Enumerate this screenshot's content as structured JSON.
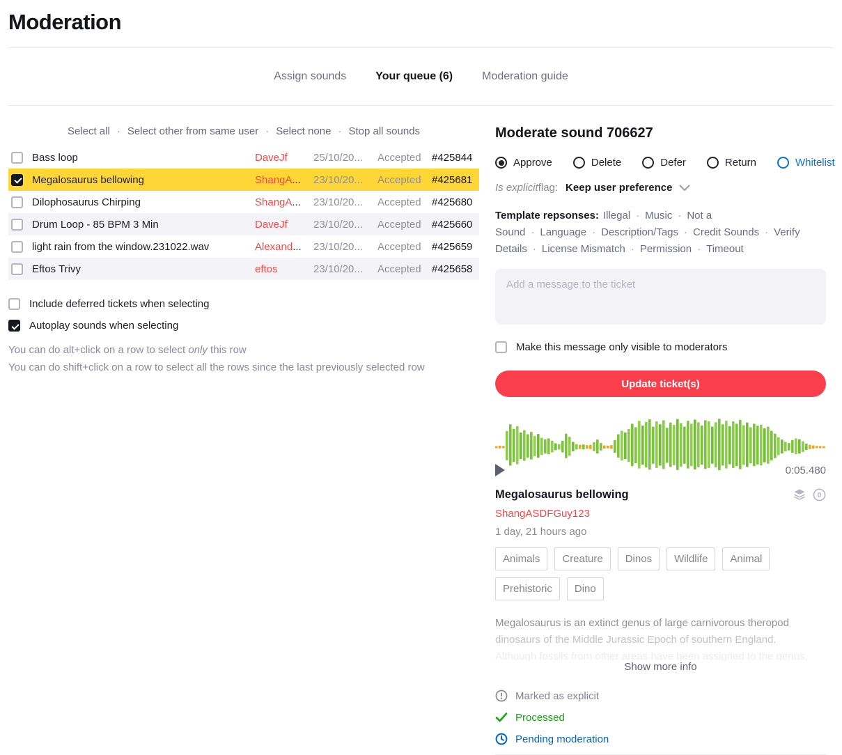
{
  "page": {
    "title": "Moderation"
  },
  "tabs": [
    {
      "label": "Assign sounds",
      "active": false
    },
    {
      "label": "Your queue (6)",
      "active": true
    },
    {
      "label": "Moderation guide",
      "active": false
    }
  ],
  "selection_bar": {
    "separator": "·",
    "links": [
      "Select all",
      "Select other from same user",
      "Select none",
      "Stop all sounds"
    ]
  },
  "queue_table": {
    "rows": [
      {
        "title": "Bass loop",
        "user": "DaveJf",
        "user_truncated": false,
        "date": "25/10/20...",
        "status": "Accepted",
        "ticket": "#425844",
        "checked": false,
        "selected": false,
        "striped": false
      },
      {
        "title": "Megalosaurus bellowing",
        "user": "ShangA",
        "user_truncated": true,
        "date": "23/10/20...",
        "status": "Accepted",
        "ticket": "#425681",
        "checked": true,
        "selected": true,
        "striped": false
      },
      {
        "title": "Dilophosaurus Chirping",
        "user": "ShangA",
        "user_truncated": true,
        "date": "23/10/20...",
        "status": "Accepted",
        "ticket": "#425680",
        "checked": false,
        "selected": false,
        "striped": false
      },
      {
        "title": "Drum Loop - 85 BPM 3 Min",
        "user": "DaveJf",
        "user_truncated": false,
        "date": "23/10/20...",
        "status": "Accepted",
        "ticket": "#425660",
        "checked": false,
        "selected": false,
        "striped": true
      },
      {
        "title": "light rain from the window.231022.wav",
        "user": "Alexand",
        "user_truncated": true,
        "date": "23/10/20...",
        "status": "Accepted",
        "ticket": "#425659",
        "checked": false,
        "selected": false,
        "striped": false
      },
      {
        "title": "Eftos Trivy",
        "user": "eftos",
        "user_truncated": false,
        "date": "23/10/20...",
        "status": "Accepted",
        "ticket": "#425658",
        "checked": false,
        "selected": false,
        "striped": true
      }
    ],
    "truncation_ellipsis": "..."
  },
  "preferences": [
    {
      "label": "Include deferred tickets when selecting",
      "checked": false
    },
    {
      "label": "Autoplay sounds when selecting",
      "checked": true
    }
  ],
  "hints": {
    "alt": {
      "pre": "You can do alt+click on a row to select ",
      "em": "only",
      "post": " this row"
    },
    "shift": "You can do shift+click on a row to select all the rows since the last previously selected row"
  },
  "moderate_panel": {
    "title": "Moderate sound 706627",
    "actions": [
      {
        "label": "Approve",
        "selected": true,
        "blue": false
      },
      {
        "label": "Delete",
        "selected": false,
        "blue": false
      },
      {
        "label": "Defer",
        "selected": false,
        "blue": false
      },
      {
        "label": "Return",
        "selected": false,
        "blue": false
      },
      {
        "label": "Whitelist",
        "selected": false,
        "blue": true
      }
    ],
    "explicit_flag": {
      "label_italic": "Is explicit",
      "label_rest": " flag:",
      "value": "Keep user preference"
    },
    "template_responses": {
      "label": "Template repsonses:",
      "separator": "·",
      "items": [
        "Illegal",
        "Music",
        "Not a Sound",
        "Language",
        "Description/Tags",
        "Credit Sounds",
        "Verify Details",
        "License Mismatch",
        "Permission",
        "Timeout"
      ]
    },
    "message": {
      "placeholder": "Add a message to the ticket",
      "value": ""
    },
    "moderator_only_checkbox": {
      "label": "Make this message only visible to moderators",
      "checked": false
    },
    "update_button": {
      "label": "Update ticket(s)",
      "color": "#fb3e4c"
    }
  },
  "player": {
    "duration": "0:05.480",
    "colors": {
      "greens": [
        "#7cc63c",
        "#8ed24a",
        "#6fbe33",
        "#86cf45",
        "#79c438"
      ],
      "quiet": "#f0a61e",
      "low_threshold": 0.08
    },
    "waveform": [
      0.03,
      0.05,
      0.04,
      0.55,
      0.78,
      0.62,
      0.72,
      0.5,
      0.58,
      0.44,
      0.52,
      0.38,
      0.45,
      0.32,
      0.27,
      0.3,
      0.22,
      0.13,
      0.1,
      0.22,
      0.46,
      0.36,
      0.18,
      0.1,
      0.08,
      0.09,
      0.07,
      0.08,
      0.17,
      0.26,
      0.14,
      0.06,
      0.05,
      0.07,
      0.24,
      0.44,
      0.56,
      0.5,
      0.62,
      0.8,
      0.68,
      0.9,
      0.74,
      0.86,
      0.95,
      0.7,
      0.88,
      0.78,
      0.92,
      0.66,
      0.84,
      0.76,
      0.96,
      0.82,
      0.7,
      0.9,
      0.8,
      0.94,
      0.85,
      0.74,
      0.92,
      0.88,
      0.7,
      0.85,
      0.97,
      0.78,
      0.9,
      0.72,
      0.88,
      0.8,
      0.93,
      0.75,
      0.84,
      0.68,
      0.8,
      0.73,
      0.77,
      0.64,
      0.7,
      0.56,
      0.46,
      0.34,
      0.26,
      0.18,
      0.14,
      0.24,
      0.3,
      0.27,
      0.2,
      0.12,
      0.08,
      0.06,
      0.04,
      0.03,
      0.02
    ]
  },
  "sound_info": {
    "title": "Megalosaurus bellowing",
    "icons": [
      "layers-icon",
      "zero-coin-icon"
    ],
    "username": "ShangASDFGuy123",
    "uploaded": "1 day, 21 hours ago",
    "tags": [
      "Animals",
      "Creature",
      "Dinos",
      "Wildlife",
      "Animal",
      "Prehistoric",
      "Dino"
    ],
    "description_lines": [
      "Megalosaurus is an extinct genus of large carnivorous theropod",
      "dinosaurs of the Middle Jurassic Epoch of southern England.",
      "Although fossils from other areas have been assigned to the genus,"
    ],
    "show_more": "Show more info"
  },
  "statuses": [
    {
      "icon": "exclamation-circle-icon",
      "label": "Marked as explicit",
      "color": "#84848f"
    },
    {
      "icon": "check-icon",
      "label": "Processed",
      "color": "#11a811"
    },
    {
      "icon": "clock-icon",
      "label": "Pending moderation",
      "color": "#0066cc"
    }
  ],
  "colors": {
    "row_highlight": "#fed636",
    "row_stripe": "#f4f4f8",
    "accent_red": "#fb3e4c",
    "link_red": "#fc4646",
    "link_blue": "#0a74cf"
  }
}
